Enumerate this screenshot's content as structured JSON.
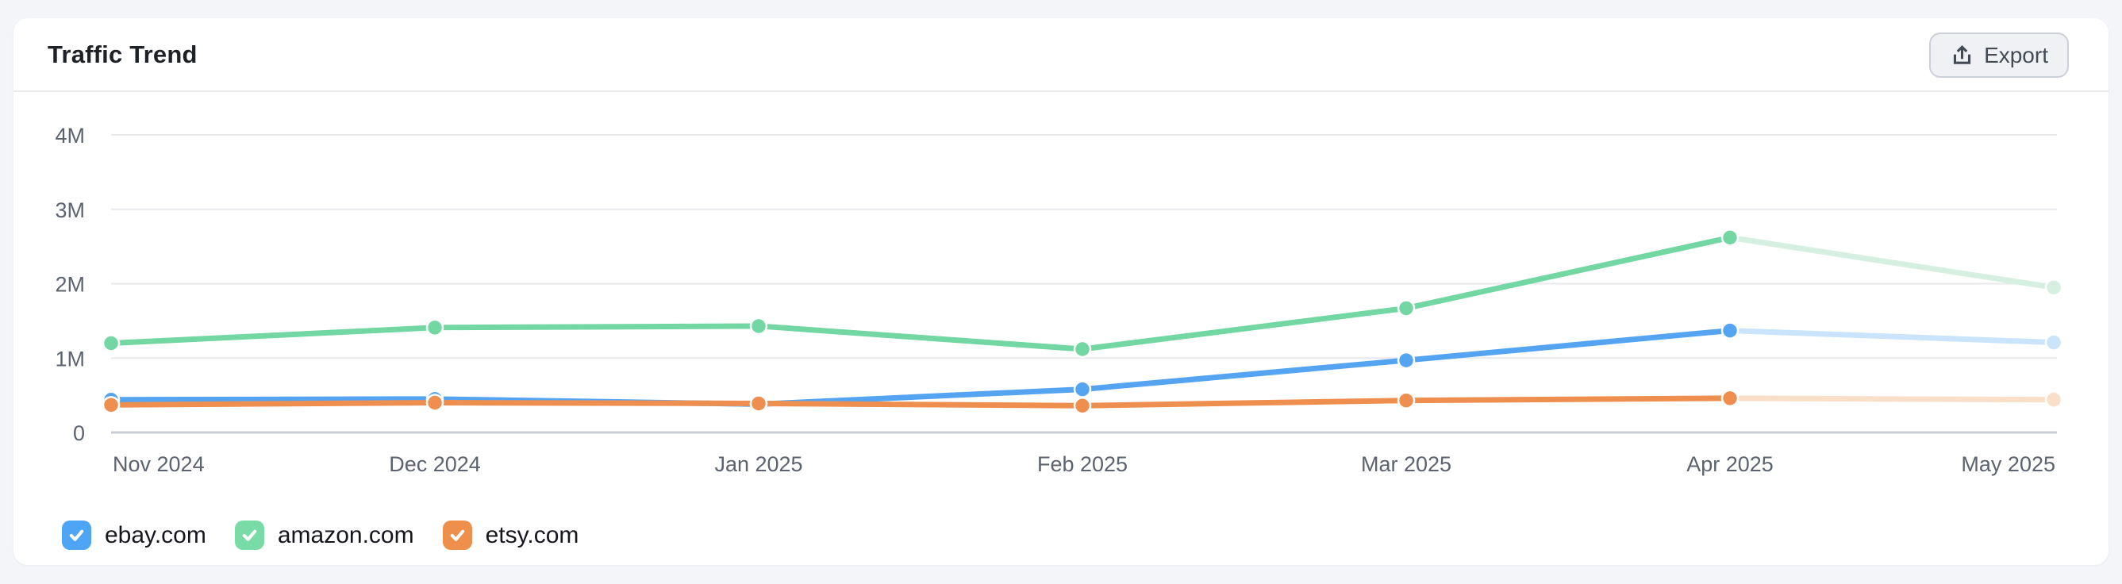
{
  "header": {
    "title": "Traffic Trend",
    "export_label": "Export"
  },
  "chart_data": {
    "type": "line",
    "title": "Traffic Trend",
    "unit": "M",
    "grid": true,
    "ylim": [
      0,
      4
    ],
    "y_tick_labels": [
      "4M",
      "3M",
      "2M",
      "1M",
      "0"
    ],
    "y_tick_values": [
      4,
      3,
      2,
      1,
      0
    ],
    "x_labels": [
      "Nov 2024",
      "Dec 2024",
      "Jan 2025",
      "Feb 2025",
      "Mar 2025",
      "Apr 2025",
      "May 2025"
    ],
    "projection_last_segment": true,
    "series": [
      {
        "name": "ebay.com",
        "color": "#55a4f2",
        "color_faded": "#c9e4fb",
        "values": [
          0.44,
          0.45,
          0.38,
          0.58,
          0.97,
          1.37,
          1.21
        ]
      },
      {
        "name": "amazon.com",
        "color": "#72d7a2",
        "color_faded": "#d5f0e1",
        "values": [
          1.2,
          1.41,
          1.43,
          1.12,
          1.67,
          2.62,
          1.95
        ]
      },
      {
        "name": "etsy.com",
        "color": "#ee8f50",
        "color_faded": "#f9dfc8",
        "values": [
          0.37,
          0.4,
          0.39,
          0.36,
          0.43,
          0.46,
          0.44
        ]
      }
    ],
    "legend_position": "bottom"
  },
  "legend": {
    "items": [
      {
        "label": "ebay.com",
        "color": "#4ea4f5",
        "checked": true
      },
      {
        "label": "amazon.com",
        "color": "#79dca7",
        "checked": true
      },
      {
        "label": "etsy.com",
        "color": "#ef8f4c",
        "checked": true
      }
    ]
  }
}
